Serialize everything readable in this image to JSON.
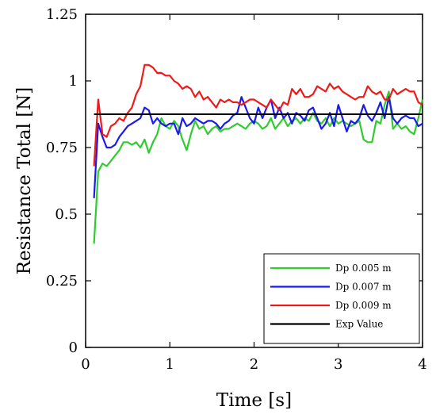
{
  "chart_data": {
    "type": "line",
    "title": "",
    "xlabel": "Time [s]",
    "ylabel": "Resistance Total [N]",
    "xlim": [
      0,
      4
    ],
    "ylim": [
      0,
      1.25
    ],
    "xticks": [
      0,
      1,
      2,
      3,
      4
    ],
    "xtick_labels": [
      "0",
      "1",
      "2",
      "3",
      "4"
    ],
    "yticks": [
      0,
      0.25,
      0.5,
      0.75,
      1,
      1.25
    ],
    "ytick_labels": [
      "0",
      "0.25",
      "0.5",
      "0.75",
      "1",
      "1.25"
    ],
    "grid": false,
    "legend_position": "bottom-right",
    "series": [
      {
        "name": "Dp 0.005 m",
        "color": "#2ecc2e",
        "x": [
          0.1,
          0.15,
          0.2,
          0.25,
          0.3,
          0.35,
          0.4,
          0.45,
          0.5,
          0.55,
          0.6,
          0.65,
          0.7,
          0.75,
          0.8,
          0.85,
          0.9,
          0.95,
          1.0,
          1.05,
          1.1,
          1.15,
          1.2,
          1.25,
          1.3,
          1.35,
          1.4,
          1.45,
          1.5,
          1.55,
          1.6,
          1.65,
          1.7,
          1.75,
          1.8,
          1.85,
          1.9,
          1.95,
          2.0,
          2.05,
          2.1,
          2.15,
          2.2,
          2.25,
          2.3,
          2.35,
          2.4,
          2.45,
          2.5,
          2.55,
          2.6,
          2.65,
          2.7,
          2.75,
          2.8,
          2.85,
          2.9,
          2.95,
          3.0,
          3.05,
          3.1,
          3.15,
          3.2,
          3.25,
          3.3,
          3.35,
          3.4,
          3.45,
          3.5,
          3.55,
          3.6,
          3.65,
          3.7,
          3.75,
          3.8,
          3.85,
          3.9,
          3.95,
          4.0
        ],
        "y": [
          0.39,
          0.66,
          0.69,
          0.68,
          0.7,
          0.72,
          0.74,
          0.77,
          0.77,
          0.76,
          0.77,
          0.75,
          0.78,
          0.73,
          0.77,
          0.8,
          0.86,
          0.83,
          0.82,
          0.85,
          0.83,
          0.78,
          0.74,
          0.8,
          0.85,
          0.82,
          0.83,
          0.8,
          0.82,
          0.83,
          0.81,
          0.82,
          0.82,
          0.83,
          0.84,
          0.83,
          0.82,
          0.84,
          0.85,
          0.84,
          0.82,
          0.83,
          0.86,
          0.82,
          0.84,
          0.86,
          0.83,
          0.85,
          0.86,
          0.84,
          0.86,
          0.85,
          0.88,
          0.85,
          0.84,
          0.86,
          0.83,
          0.86,
          0.84,
          0.85,
          0.84,
          0.83,
          0.84,
          0.85,
          0.78,
          0.77,
          0.77,
          0.85,
          0.84,
          0.91,
          0.96,
          0.82,
          0.84,
          0.82,
          0.83,
          0.81,
          0.8,
          0.86,
          0.93
        ]
      },
      {
        "name": "Dp 0.007 m",
        "color": "#1a1aee",
        "x": [
          0.1,
          0.15,
          0.2,
          0.25,
          0.3,
          0.35,
          0.4,
          0.45,
          0.5,
          0.55,
          0.6,
          0.65,
          0.7,
          0.75,
          0.8,
          0.85,
          0.9,
          0.95,
          1.0,
          1.05,
          1.1,
          1.15,
          1.2,
          1.25,
          1.3,
          1.35,
          1.4,
          1.45,
          1.5,
          1.55,
          1.6,
          1.65,
          1.7,
          1.75,
          1.8,
          1.85,
          1.9,
          1.95,
          2.0,
          2.05,
          2.1,
          2.15,
          2.2,
          2.25,
          2.3,
          2.35,
          2.4,
          2.45,
          2.5,
          2.55,
          2.6,
          2.65,
          2.7,
          2.75,
          2.8,
          2.85,
          2.9,
          2.95,
          3.0,
          3.05,
          3.1,
          3.15,
          3.2,
          3.25,
          3.3,
          3.35,
          3.4,
          3.45,
          3.5,
          3.55,
          3.6,
          3.65,
          3.7,
          3.75,
          3.8,
          3.85,
          3.9,
          3.95,
          4.0
        ],
        "y": [
          0.56,
          0.84,
          0.79,
          0.75,
          0.75,
          0.76,
          0.79,
          0.81,
          0.83,
          0.84,
          0.85,
          0.86,
          0.9,
          0.89,
          0.84,
          0.86,
          0.84,
          0.83,
          0.84,
          0.84,
          0.8,
          0.86,
          0.83,
          0.84,
          0.86,
          0.85,
          0.84,
          0.85,
          0.85,
          0.84,
          0.82,
          0.84,
          0.85,
          0.87,
          0.88,
          0.94,
          0.9,
          0.86,
          0.84,
          0.9,
          0.86,
          0.9,
          0.93,
          0.86,
          0.9,
          0.86,
          0.88,
          0.84,
          0.88,
          0.87,
          0.85,
          0.89,
          0.9,
          0.86,
          0.82,
          0.84,
          0.88,
          0.83,
          0.91,
          0.86,
          0.81,
          0.85,
          0.84,
          0.86,
          0.91,
          0.87,
          0.85,
          0.88,
          0.92,
          0.86,
          0.94,
          0.86,
          0.84,
          0.86,
          0.87,
          0.86,
          0.86,
          0.83,
          0.84
        ]
      },
      {
        "name": "Dp 0.009 m",
        "color": "#ee1a1a",
        "x": [
          0.1,
          0.15,
          0.2,
          0.25,
          0.3,
          0.35,
          0.4,
          0.45,
          0.5,
          0.55,
          0.6,
          0.65,
          0.7,
          0.75,
          0.8,
          0.85,
          0.9,
          0.95,
          1.0,
          1.05,
          1.1,
          1.15,
          1.2,
          1.25,
          1.3,
          1.35,
          1.4,
          1.45,
          1.5,
          1.55,
          1.6,
          1.65,
          1.7,
          1.75,
          1.8,
          1.85,
          1.9,
          1.95,
          2.0,
          2.05,
          2.1,
          2.15,
          2.2,
          2.25,
          2.3,
          2.35,
          2.4,
          2.45,
          2.5,
          2.55,
          2.6,
          2.65,
          2.7,
          2.75,
          2.8,
          2.85,
          2.9,
          2.95,
          3.0,
          3.05,
          3.1,
          3.15,
          3.2,
          3.25,
          3.3,
          3.35,
          3.4,
          3.45,
          3.5,
          3.55,
          3.6,
          3.65,
          3.7,
          3.75,
          3.8,
          3.85,
          3.9,
          3.95,
          4.0
        ],
        "y": [
          0.68,
          0.93,
          0.8,
          0.79,
          0.83,
          0.84,
          0.86,
          0.85,
          0.88,
          0.9,
          0.95,
          0.98,
          1.06,
          1.06,
          1.05,
          1.03,
          1.03,
          1.02,
          1.02,
          1.0,
          0.99,
          0.97,
          0.98,
          0.97,
          0.94,
          0.96,
          0.93,
          0.94,
          0.92,
          0.9,
          0.93,
          0.92,
          0.93,
          0.92,
          0.92,
          0.91,
          0.92,
          0.93,
          0.93,
          0.92,
          0.91,
          0.9,
          0.93,
          0.91,
          0.89,
          0.92,
          0.91,
          0.97,
          0.95,
          0.97,
          0.94,
          0.94,
          0.95,
          0.98,
          0.97,
          0.96,
          0.99,
          0.97,
          0.98,
          0.96,
          0.95,
          0.94,
          0.93,
          0.94,
          0.94,
          0.98,
          0.96,
          0.95,
          0.96,
          0.93,
          0.93,
          0.97,
          0.95,
          0.96,
          0.97,
          0.96,
          0.96,
          0.92,
          0.91
        ]
      },
      {
        "name": "Exp Value",
        "color": "#000000",
        "x": [
          0.1,
          4.0
        ],
        "y": [
          0.875,
          0.875
        ]
      }
    ]
  }
}
